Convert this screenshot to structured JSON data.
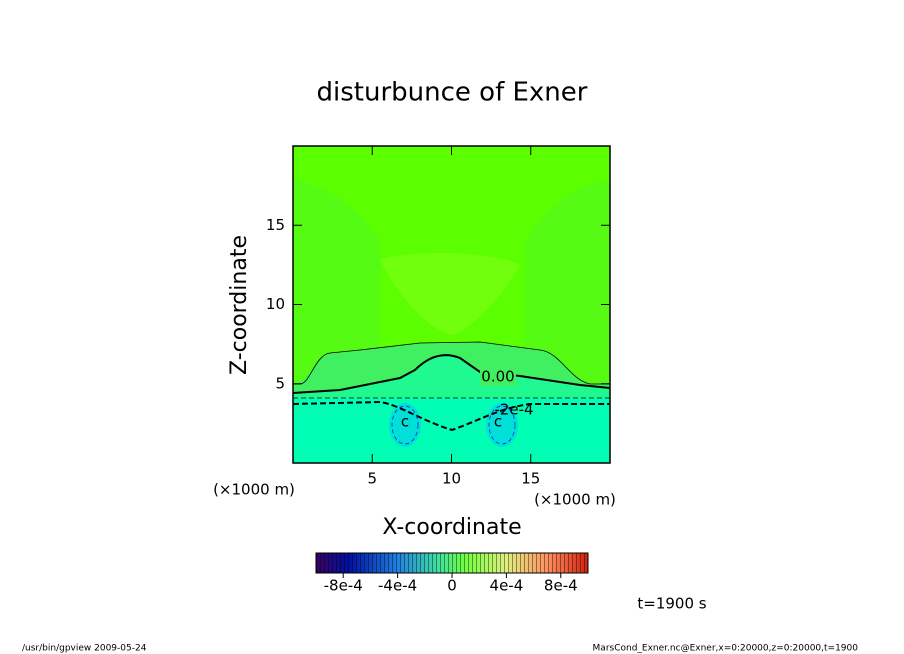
{
  "chart_data": {
    "type": "contour",
    "title": "disturbunce of Exner",
    "xlabel": "X-coordinate",
    "ylabel": "Z-coordinate",
    "x_unit_labels": [
      "(×1000 m)",
      "(×1000 m)"
    ],
    "xlim": [
      0,
      20
    ],
    "ylim": [
      0,
      20
    ],
    "xticks": [
      5,
      10,
      15
    ],
    "yticks": [
      5,
      10,
      15
    ],
    "contour_labels": [
      {
        "value": 0,
        "label": "0.00"
      },
      {
        "value": -0.0002,
        "label": "-2e-4"
      },
      {
        "value": -0.0004,
        "label": "c"
      },
      {
        "value": -0.0004,
        "label": "c"
      }
    ],
    "colorbar": {
      "lim": [
        -0.001,
        0.001
      ],
      "ticks": [
        {
          "value": -0.0008,
          "label": "-8e-4"
        },
        {
          "value": -0.0004,
          "label": "-4e-4"
        },
        {
          "value": 0,
          "label": "0"
        },
        {
          "value": 0.0004,
          "label": "4e-4"
        },
        {
          "value": 0.0008,
          "label": "8e-4"
        }
      ]
    },
    "time_label": "t=1900 s",
    "footer_left": "/usr/bin/gpview  2009-05-24",
    "footer_right": "MarsCond_Exner.nc@Exner,x=0:20000,z=0:20000,t=1900"
  }
}
